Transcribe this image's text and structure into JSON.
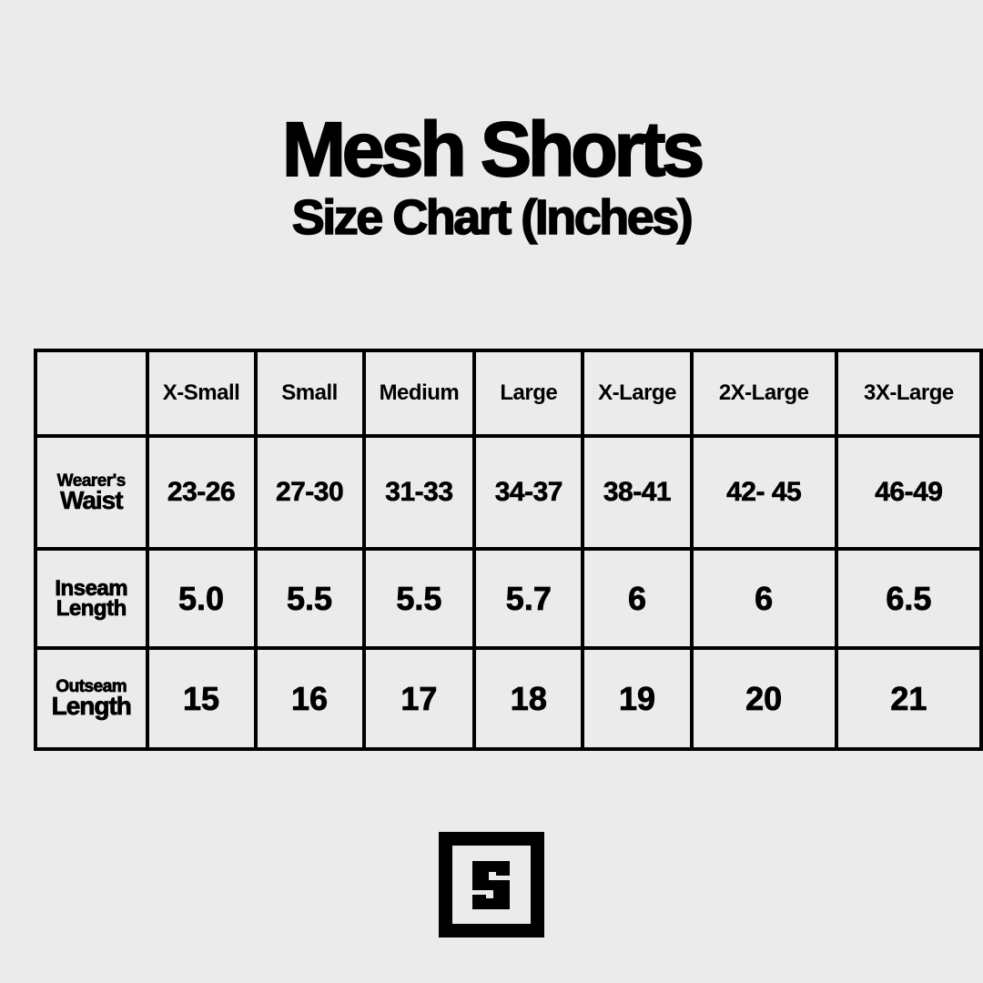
{
  "title": "Mesh Shorts",
  "subtitle": "Size Chart (Inches)",
  "table": {
    "columns": [
      "X-Small",
      "Small",
      "Medium",
      "Large",
      "X-Large",
      "2X-Large",
      "3X-Large"
    ],
    "rows": [
      {
        "label_top": "Wearer's",
        "label_bottom": "Waist",
        "values": [
          "23-26",
          "27-30",
          "31-33",
          "34-37",
          "38-41",
          "42- 45",
          "46-49"
        ]
      },
      {
        "label_top": "Inseam",
        "label_bottom": "Length",
        "values": [
          "5.0",
          "5.5",
          "5.5",
          "5.7",
          "6",
          "6",
          "6.5"
        ]
      },
      {
        "label_top": "Outseam",
        "label_bottom": "Length",
        "values": [
          "15",
          "16",
          "17",
          "18",
          "19",
          "20",
          "21"
        ]
      }
    ]
  },
  "logo": {
    "letter": "S",
    "icon": "square-s-logo"
  }
}
